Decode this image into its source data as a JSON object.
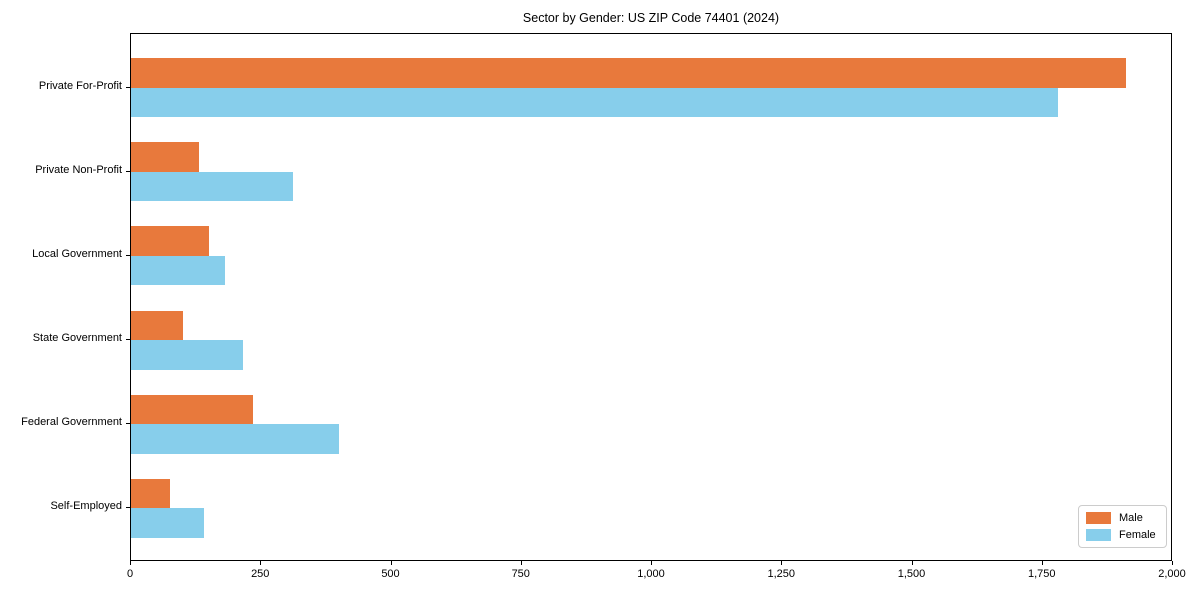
{
  "chart_data": {
    "type": "bar",
    "orientation": "horizontal",
    "title": "Sector by Gender: US ZIP Code 74401 (2024)",
    "categories": [
      "Private For-Profit",
      "Private Non-Profit",
      "Local Government",
      "State Government",
      "Federal Government",
      "Self-Employed"
    ],
    "series": [
      {
        "name": "Male",
        "color": "#E8793C",
        "values": [
          1910,
          130,
          150,
          100,
          235,
          75
        ]
      },
      {
        "name": "Female",
        "color": "#87CEEB",
        "values": [
          1780,
          310,
          180,
          215,
          400,
          140
        ]
      }
    ],
    "xlim": [
      0,
      2000
    ],
    "xticks": [
      0,
      250,
      500,
      750,
      1000,
      1250,
      1500,
      1750,
      2000
    ],
    "xtick_labels": [
      "0",
      "250",
      "500",
      "750",
      "1,000",
      "1,250",
      "1,500",
      "1,750",
      "2,000"
    ],
    "xlabel": "",
    "ylabel": "",
    "grid": false,
    "legend_position": "lower right",
    "axis_color": "#000000",
    "background_color": "#ffffff"
  }
}
